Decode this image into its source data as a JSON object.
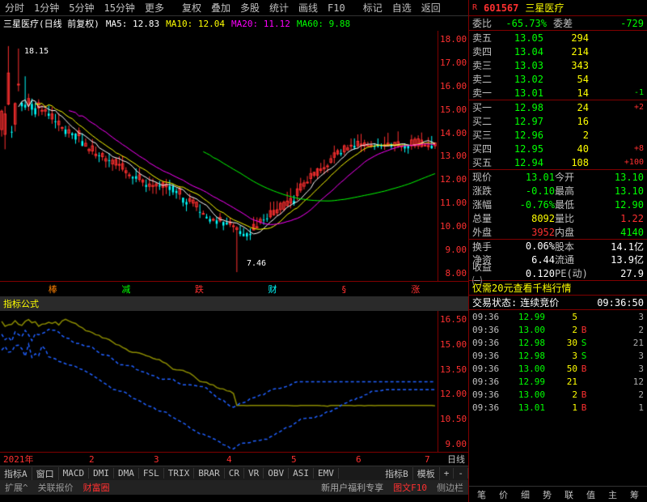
{
  "top_tabs": {
    "i0": "分时",
    "i1": "1分钟",
    "i2": "5分钟",
    "i3": "15分钟",
    "i4": "更多",
    "i5": "复权",
    "i6": "叠加",
    "i7": "多股",
    "i8": "统计",
    "i9": "画线",
    "i10": "F10",
    "i11": "标记",
    "i12": "自选",
    "i13": "返回"
  },
  "chart_title": "三星医疗(日线 前复权)",
  "ma": {
    "ma5_l": "MA5:",
    "ma5": "12.83",
    "ma10_l": "MA10:",
    "ma10": "12.04",
    "ma20_l": "MA20:",
    "ma20": "11.12",
    "ma60_l": "MA60:",
    "ma60": "9.88"
  },
  "price_high": "18.15",
  "price_low": "7.46",
  "y_main": [
    "18.00",
    "17.00",
    "16.00",
    "15.00",
    "14.00",
    "13.00",
    "12.00",
    "11.00",
    "10.00",
    "9.00",
    "8.00"
  ],
  "annotations": [
    "棒",
    "减",
    "跌",
    "财",
    "§",
    "涨"
  ],
  "formula_label": "指标公式",
  "y_sub": [
    "16.50",
    "15.00",
    "13.50",
    "12.00",
    "10.50",
    "9.00"
  ],
  "time": {
    "year": "2021年",
    "m2": "2",
    "m3": "3",
    "m4": "4",
    "m5": "5",
    "m6": "6",
    "m7": "7",
    "period": "日线"
  },
  "ind_tabs": {
    "i0": "指标A",
    "i1": "窗口",
    "i2": "MACD",
    "i3": "DMI",
    "i4": "DMA",
    "i5": "FSL",
    "i6": "TRIX",
    "i7": "BRAR",
    "i8": "CR",
    "i9": "VR",
    "i10": "OBV",
    "i11": "ASI",
    "i12": "EMV",
    "i13": "指标B",
    "i14": "模板"
  },
  "status": {
    "s0": "扩展^",
    "s1": "关联报价",
    "s2": "财富圈",
    "s3": "新用户福利专享",
    "s4": "图文F10",
    "s5": "侧边栏"
  },
  "stock": {
    "icon": "R",
    "code": "601567",
    "name": "三星医疗"
  },
  "commit": {
    "l1": "委比",
    "v1": "-65.73%",
    "l2": "委差",
    "v2": "-729"
  },
  "sells": [
    {
      "l": "卖五",
      "p": "13.05",
      "v": "294",
      "c": ""
    },
    {
      "l": "卖四",
      "p": "13.04",
      "v": "214",
      "c": ""
    },
    {
      "l": "卖三",
      "p": "13.03",
      "v": "343",
      "c": ""
    },
    {
      "l": "卖二",
      "p": "13.02",
      "v": "54",
      "c": ""
    },
    {
      "l": "卖一",
      "p": "13.01",
      "v": "14",
      "c": "-1"
    }
  ],
  "buys": [
    {
      "l": "买一",
      "p": "12.98",
      "v": "24",
      "c": "+2"
    },
    {
      "l": "买二",
      "p": "12.97",
      "v": "16",
      "c": ""
    },
    {
      "l": "买三",
      "p": "12.96",
      "v": "2",
      "c": ""
    },
    {
      "l": "买四",
      "p": "12.95",
      "v": "40",
      "c": "+8"
    },
    {
      "l": "买五",
      "p": "12.94",
      "v": "108",
      "c": "+100"
    }
  ],
  "info": [
    {
      "l1": "现价",
      "v1": "13.01",
      "c1": "green",
      "l2": "今开",
      "v2": "13.10",
      "c2": "green"
    },
    {
      "l1": "涨跌",
      "v1": "-0.10",
      "c1": "green",
      "l2": "最高",
      "v2": "13.10",
      "c2": "green"
    },
    {
      "l1": "涨幅",
      "v1": "-0.76%",
      "c1": "green",
      "l2": "最低",
      "v2": "12.90",
      "c2": "green"
    },
    {
      "l1": "总量",
      "v1": "8092",
      "c1": "yellow",
      "l2": "量比",
      "v2": "1.22",
      "c2": "red"
    },
    {
      "l1": "外盘",
      "v1": "3952",
      "c1": "red",
      "l2": "内盘",
      "v2": "4140",
      "c2": "green"
    },
    {
      "l1": "换手",
      "v1": "0.06%",
      "c1": "white",
      "l2": "股本",
      "v2": "14.1亿",
      "c2": "white"
    },
    {
      "l1": "净资",
      "v1": "6.44",
      "c1": "white",
      "l2": "流通",
      "v2": "13.9亿",
      "c2": "white"
    },
    {
      "l1": "收益㈠",
      "v1": "0.120",
      "c1": "white",
      "l2": "PE(动)",
      "v2": "27.9",
      "c2": "white"
    }
  ],
  "promo": "仅需20元查看千档行情",
  "trading": {
    "l": "交易状态:",
    "s": "连续竞价",
    "t": "09:36:50"
  },
  "tx": [
    {
      "t": "09:36",
      "p": "12.99",
      "pc": "green",
      "v": "5",
      "d": "",
      "dc": "",
      "n": "3"
    },
    {
      "t": "09:36",
      "p": "13.00",
      "pc": "green",
      "v": "2",
      "d": "B",
      "dc": "red",
      "n": "2"
    },
    {
      "t": "09:36",
      "p": "12.98",
      "pc": "green",
      "v": "30",
      "d": "S",
      "dc": "green",
      "n": "21"
    },
    {
      "t": "09:36",
      "p": "12.98",
      "pc": "green",
      "v": "3",
      "d": "S",
      "dc": "green",
      "n": "3"
    },
    {
      "t": "09:36",
      "p": "13.00",
      "pc": "green",
      "v": "50",
      "d": "B",
      "dc": "red",
      "n": "3"
    },
    {
      "t": "09:36",
      "p": "12.99",
      "pc": "green",
      "v": "21",
      "d": "",
      "dc": "",
      "n": "12"
    },
    {
      "t": "09:36",
      "p": "13.00",
      "pc": "green",
      "v": "2",
      "d": "B",
      "dc": "red",
      "n": "2"
    },
    {
      "t": "09:36",
      "p": "13.01",
      "pc": "green",
      "v": "1",
      "d": "B",
      "dc": "red",
      "n": "1"
    }
  ],
  "rtabs": {
    "i0": "笔",
    "i1": "价",
    "i2": "细",
    "i3": "势",
    "i4": "联",
    "i5": "值",
    "i6": "主",
    "i7": "筹"
  },
  "candle_data": {
    "colors": {
      "up": "#ff3030",
      "down": "#00ffff",
      "ma5": "#ffffff",
      "ma10": "#ffff00",
      "ma20": "#ff00ff",
      "ma60": "#00ff00"
    },
    "y_range": [
      7,
      19
    ]
  },
  "sub_lines": {
    "colors": {
      "a": "#8b8b00",
      "b": "#0080ff",
      "c": "#0080ff"
    },
    "y_range": [
      8,
      17
    ]
  }
}
